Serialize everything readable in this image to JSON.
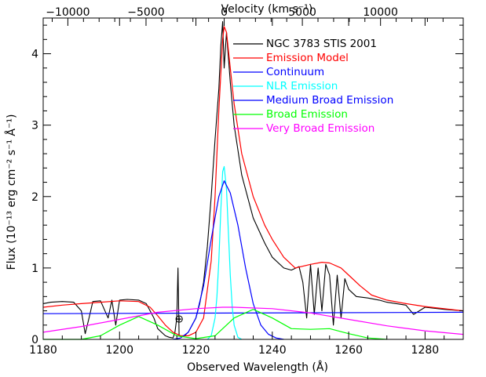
{
  "chart_data": {
    "type": "line",
    "title": "",
    "xlabel": "Observed Wavelength (Å)",
    "ylabel": "Flux (10⁻¹³ erg cm⁻² s⁻¹ Å⁻¹)",
    "x2label": "Velocity (km s⁻¹)",
    "xlim": [
      1180,
      1290
    ],
    "ylim": [
      0,
      4.5
    ],
    "x_ticks": [
      1180,
      1200,
      1220,
      1240,
      1260,
      1280
    ],
    "x_tick_labels": [
      "1180",
      "1200",
      "1220",
      "1240",
      "1260",
      "1280"
    ],
    "y_ticks": [
      0,
      1,
      2,
      3,
      4
    ],
    "y_tick_labels": [
      "0",
      "1",
      "2",
      "3",
      "4"
    ],
    "x2_ticks": [
      -10000,
      -5000,
      0,
      5000,
      10000
    ],
    "x2_tick_labels": [
      "−10000",
      "−5000",
      "0",
      "5000",
      "10000"
    ],
    "velocity_zero_wavelength": 1227.4,
    "legend_position": "top-right",
    "annotation": {
      "symbol": "⊕",
      "x": 1215.6,
      "y": 0.3
    },
    "series": [
      {
        "name": "NGC 3783 STIS 2001",
        "color": "#000000",
        "x": [
          1180,
          1182,
          1185,
          1188,
          1190,
          1191,
          1192,
          1193,
          1195,
          1197,
          1198,
          1199,
          1200,
          1202,
          1205,
          1207,
          1208,
          1209,
          1210,
          1212,
          1213,
          1214,
          1214.5,
          1215,
          1215.3,
          1215.6,
          1216,
          1217,
          1218,
          1219,
          1220,
          1221,
          1222,
          1223,
          1224,
          1225,
          1226,
          1226.5,
          1227,
          1227.4,
          1228,
          1229,
          1230,
          1232,
          1235,
          1238,
          1240,
          1243,
          1245,
          1247,
          1248,
          1249,
          1250,
          1251,
          1252,
          1253,
          1254,
          1255,
          1256,
          1257,
          1258,
          1259,
          1260,
          1262,
          1265,
          1268,
          1270,
          1275,
          1277,
          1280,
          1285,
          1290
        ],
        "y": [
          0.5,
          0.52,
          0.53,
          0.52,
          0.4,
          0.08,
          0.3,
          0.53,
          0.54,
          0.3,
          0.55,
          0.2,
          0.55,
          0.56,
          0.55,
          0.5,
          0.4,
          0.3,
          0.15,
          0.05,
          0.03,
          0.02,
          0.1,
          0.3,
          1.0,
          0.05,
          0.04,
          0.05,
          0.1,
          0.2,
          0.3,
          0.5,
          0.8,
          1.3,
          2.0,
          2.8,
          3.5,
          4.1,
          4.45,
          3.8,
          4.3,
          3.6,
          3.0,
          2.3,
          1.7,
          1.35,
          1.15,
          1.0,
          0.97,
          1.02,
          0.8,
          0.3,
          1.05,
          0.35,
          1.0,
          0.4,
          1.05,
          0.9,
          0.2,
          0.9,
          0.3,
          0.85,
          0.7,
          0.6,
          0.58,
          0.55,
          0.52,
          0.48,
          0.35,
          0.45,
          0.42,
          0.4
        ]
      },
      {
        "name": "Emission Model",
        "color": "#ff0000",
        "x": [
          1180,
          1185,
          1190,
          1195,
          1200,
          1205,
          1208,
          1210,
          1212,
          1214,
          1216,
          1218,
          1220,
          1222,
          1224,
          1225,
          1226,
          1227,
          1227.4,
          1228,
          1229,
          1230,
          1232,
          1235,
          1238,
          1240,
          1243,
          1246,
          1250,
          1253,
          1255,
          1258,
          1260,
          1263,
          1266,
          1270,
          1275,
          1280,
          1285,
          1290
        ],
        "y": [
          0.45,
          0.48,
          0.5,
          0.52,
          0.54,
          0.53,
          0.45,
          0.33,
          0.2,
          0.1,
          0.05,
          0.05,
          0.1,
          0.3,
          1.1,
          2.0,
          3.2,
          4.2,
          4.38,
          4.3,
          3.8,
          3.3,
          2.6,
          2.0,
          1.6,
          1.4,
          1.15,
          1.0,
          1.05,
          1.08,
          1.07,
          1.0,
          0.9,
          0.75,
          0.62,
          0.55,
          0.5,
          0.46,
          0.43,
          0.4
        ]
      },
      {
        "name": "Continuum",
        "color": "#0000ff",
        "x": [
          1180,
          1290
        ],
        "y": [
          0.36,
          0.38
        ]
      },
      {
        "name": "NLR Emission",
        "color": "#00ffff",
        "x": [
          1223,
          1224,
          1225,
          1225.5,
          1226,
          1226.5,
          1227,
          1227.4,
          1228,
          1228.5,
          1229,
          1229.5,
          1230,
          1231,
          1232
        ],
        "y": [
          0,
          0.05,
          0.3,
          0.6,
          1.1,
          1.8,
          2.35,
          2.42,
          2.1,
          1.5,
          0.9,
          0.45,
          0.2,
          0.03,
          0
        ]
      },
      {
        "name": "Medium Broad Emission",
        "color": "#0000ff",
        "x": [
          1214,
          1216,
          1218,
          1220,
          1222,
          1224,
          1226,
          1227.4,
          1229,
          1231,
          1233,
          1235,
          1237,
          1239,
          1241,
          1243
        ],
        "y": [
          0,
          0.02,
          0.1,
          0.3,
          0.75,
          1.4,
          2.0,
          2.22,
          2.05,
          1.6,
          1.0,
          0.5,
          0.2,
          0.07,
          0.02,
          0
        ]
      },
      {
        "name": "Broad Emission",
        "color": "#00ff00",
        "x": [
          1180,
          1190,
          1195,
          1200,
          1205,
          1210,
          1215,
          1220,
          1225,
          1230,
          1235,
          1240,
          1245,
          1250,
          1255,
          1260,
          1265,
          1270
        ],
        "y": [
          0,
          0,
          0.05,
          0.2,
          0.32,
          0.2,
          0.05,
          0.01,
          0.05,
          0.3,
          0.42,
          0.3,
          0.15,
          0.14,
          0.15,
          0.08,
          0.02,
          0
        ]
      },
      {
        "name": "Very Broad Emission",
        "color": "#ff00ff",
        "x": [
          1180,
          1190,
          1200,
          1210,
          1220,
          1227,
          1230,
          1240,
          1250,
          1260,
          1270,
          1280,
          1290
        ],
        "y": [
          0.1,
          0.18,
          0.28,
          0.38,
          0.43,
          0.45,
          0.45,
          0.43,
          0.37,
          0.28,
          0.19,
          0.12,
          0.07
        ]
      }
    ]
  }
}
